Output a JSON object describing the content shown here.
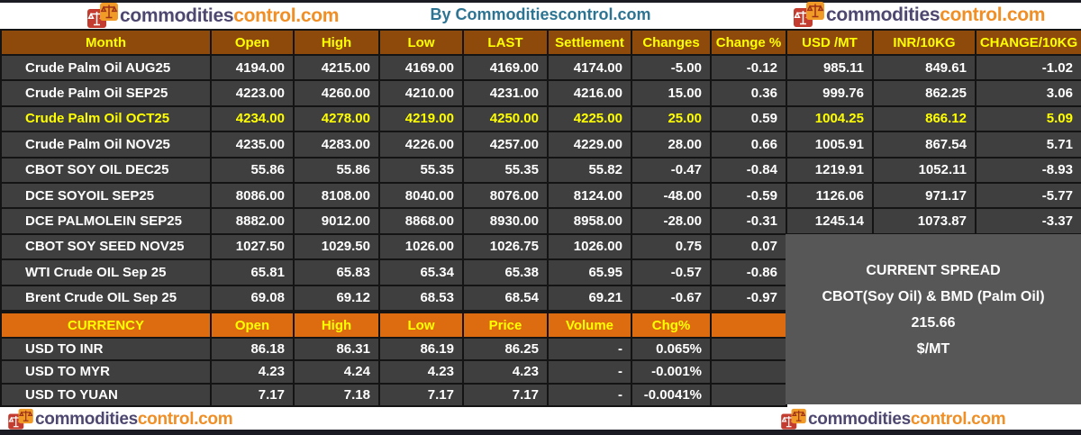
{
  "colors": {
    "header_brown": "#8E4A0A",
    "currency_orange": "#DD6B10",
    "row_gray": "#3F3F3F",
    "grid_black": "#141414",
    "spread_gray": "#575757",
    "highlight_yellow": "#FFFF00",
    "title_teal": "#2D7493",
    "logo_dark": "#4E4870",
    "logo_orange": "#EF8F26",
    "icon_red": "#C43C2F",
    "icon_orange": "#F09A28",
    "edge_bar": "#1B1B23"
  },
  "header": {
    "center_title": "By Commoditiescontrol.com"
  },
  "logo": {
    "text_dark": "commodities",
    "text_orange": "control.com"
  },
  "spread": {
    "title": "CURRENT SPREAD",
    "subtitle": "CBOT(Soy Oil) & BMD (Palm Oil)",
    "value": "215.66",
    "unit": "$/MT"
  },
  "chart_data": [
    {
      "type": "table",
      "columns": [
        "Month",
        "Open",
        "High",
        "Low",
        "LAST",
        "Settlement",
        "Changes",
        "Change %",
        "USD /MT",
        "INR/10KG",
        "CHANGE/10KG"
      ],
      "rows": [
        {
          "label": "Crude Palm Oil AUG25",
          "values": [
            "4194.00",
            "4215.00",
            "4169.00",
            "4169.00",
            "4174.00",
            "-5.00",
            "-0.12",
            "985.11",
            "849.61",
            "-1.02"
          ]
        },
        {
          "label": "Crude Palm Oil SEP25",
          "values": [
            "4223.00",
            "4260.00",
            "4210.00",
            "4231.00",
            "4216.00",
            "15.00",
            "0.36",
            "999.76",
            "862.25",
            "3.06"
          ]
        },
        {
          "label": "Crude Palm Oil OCT25",
          "yellow": true,
          "white_indices": [
            6
          ],
          "values": [
            "4234.00",
            "4278.00",
            "4219.00",
            "4250.00",
            "4225.00",
            "25.00",
            "0.59",
            "1004.25",
            "866.12",
            "5.09"
          ]
        },
        {
          "label": "Crude Palm Oil NOV25",
          "values": [
            "4235.00",
            "4283.00",
            "4226.00",
            "4257.00",
            "4229.00",
            "28.00",
            "0.66",
            "1005.91",
            "867.54",
            "5.71"
          ]
        },
        {
          "label": "CBOT SOY OIL DEC25",
          "values": [
            "55.86",
            "55.86",
            "55.35",
            "55.35",
            "55.82",
            "-0.47",
            "-0.84",
            "1219.91",
            "1052.11",
            "-8.93"
          ]
        },
        {
          "label": "DCE SOYOIL SEP25",
          "values": [
            "8086.00",
            "8108.00",
            "8040.00",
            "8076.00",
            "8124.00",
            "-48.00",
            "-0.59",
            "1126.06",
            "971.17",
            "-5.77"
          ]
        },
        {
          "label": "DCE PALMOLEIN SEP25",
          "values": [
            "8882.00",
            "9012.00",
            "8868.00",
            "8930.00",
            "8958.00",
            "-28.00",
            "-0.31",
            "1245.14",
            "1073.87",
            "-3.37"
          ]
        },
        {
          "label": "CBOT SOY SEED NOV25",
          "values": [
            "1027.50",
            "1029.50",
            "1026.00",
            "1026.75",
            "1026.00",
            "0.75",
            "0.07",
            "",
            "",
            ""
          ]
        },
        {
          "label": "WTI Crude OIL Sep 25",
          "values": [
            "65.81",
            "65.83",
            "65.34",
            "65.38",
            "65.95",
            "-0.57",
            "-0.86",
            "",
            "",
            ""
          ]
        },
        {
          "label": "Brent Crude OIL Sep 25",
          "values": [
            "69.08",
            "69.12",
            "68.53",
            "68.54",
            "69.21",
            "-0.67",
            "-0.97",
            "",
            "",
            ""
          ]
        }
      ]
    },
    {
      "type": "table",
      "columns": [
        "CURRENCY",
        "Open",
        "High",
        "Low",
        "Price",
        "Volume",
        "Chg%",
        ""
      ],
      "rows": [
        {
          "label": "USD TO INR",
          "values": [
            "86.18",
            "86.31",
            "86.19",
            "86.25",
            "-",
            "0.065%",
            ""
          ]
        },
        {
          "label": "USD TO MYR",
          "values": [
            "4.23",
            "4.24",
            "4.23",
            "4.23",
            "-",
            "-0.001%",
            ""
          ]
        },
        {
          "label": "USD TO YUAN",
          "values": [
            "7.17",
            "7.18",
            "7.17",
            "7.17",
            "-",
            "-0.0041%",
            ""
          ]
        }
      ]
    }
  ]
}
